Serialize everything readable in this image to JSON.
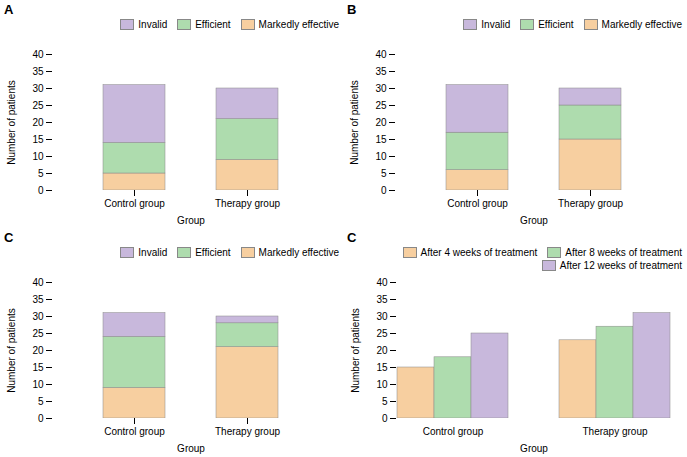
{
  "chart_data": [
    {
      "type": "bar",
      "stacked": true,
      "title": "A",
      "categories": [
        "Control group",
        "Therapy group"
      ],
      "series": [
        {
          "name": "Markedly effective",
          "color": "#F7CFA0",
          "values": [
            5,
            9
          ]
        },
        {
          "name": "Efficient",
          "color": "#AEDCAE",
          "values": [
            9,
            12
          ]
        },
        {
          "name": "Invalid",
          "color": "#C8B8DC",
          "values": [
            17,
            9
          ]
        }
      ],
      "xlabel": "Group",
      "ylabel": "Number of patients",
      "ylim": [
        0,
        40
      ],
      "yticks": [
        0,
        5,
        10,
        15,
        20,
        25,
        30,
        35,
        40
      ],
      "legend": "top right",
      "grid": false
    },
    {
      "type": "bar",
      "stacked": true,
      "title": "B",
      "categories": [
        "Control group",
        "Therapy group"
      ],
      "series": [
        {
          "name": "Markedly effective",
          "color": "#F7CFA0",
          "values": [
            6,
            15
          ]
        },
        {
          "name": "Efficient",
          "color": "#AEDCAE",
          "values": [
            11,
            10
          ]
        },
        {
          "name": "Invalid",
          "color": "#C8B8DC",
          "values": [
            14,
            5
          ]
        }
      ],
      "xlabel": "Group",
      "ylabel": "Number of patients",
      "ylim": [
        0,
        40
      ],
      "yticks": [
        0,
        5,
        10,
        15,
        20,
        25,
        30,
        35,
        40
      ],
      "legend": "top right",
      "grid": false
    },
    {
      "type": "bar",
      "stacked": true,
      "title": "C",
      "categories": [
        "Control group",
        "Therapy group"
      ],
      "series": [
        {
          "name": "Markedly effective",
          "color": "#F7CFA0",
          "values": [
            9,
            21
          ]
        },
        {
          "name": "Efficient",
          "color": "#AEDCAE",
          "values": [
            15,
            7
          ]
        },
        {
          "name": "Invalid",
          "color": "#C8B8DC",
          "values": [
            7,
            2
          ]
        }
      ],
      "xlabel": "Group",
      "ylabel": "Number of patients",
      "ylim": [
        0,
        40
      ],
      "yticks": [
        0,
        5,
        10,
        15,
        20,
        25,
        30,
        35,
        40
      ],
      "legend": "top right",
      "grid": false
    },
    {
      "type": "bar",
      "stacked": false,
      "title": "C",
      "categories": [
        "Control group",
        "Therapy group"
      ],
      "series": [
        {
          "name": "After 4 weeks of treatment",
          "color": "#F7CFA0",
          "values": [
            15,
            23
          ]
        },
        {
          "name": "After 8 weeks of treatment",
          "color": "#AEDCAE",
          "values": [
            18,
            27
          ]
        },
        {
          "name": "After 12 weeks of treatment",
          "color": "#C8B8DC",
          "values": [
            25,
            31
          ]
        }
      ],
      "xlabel": "Group",
      "ylabel": "Number of patients",
      "ylim": [
        0,
        40
      ],
      "yticks": [
        0,
        5,
        10,
        15,
        20,
        25,
        30,
        35,
        40
      ],
      "legend": "top right",
      "grid": false
    }
  ]
}
